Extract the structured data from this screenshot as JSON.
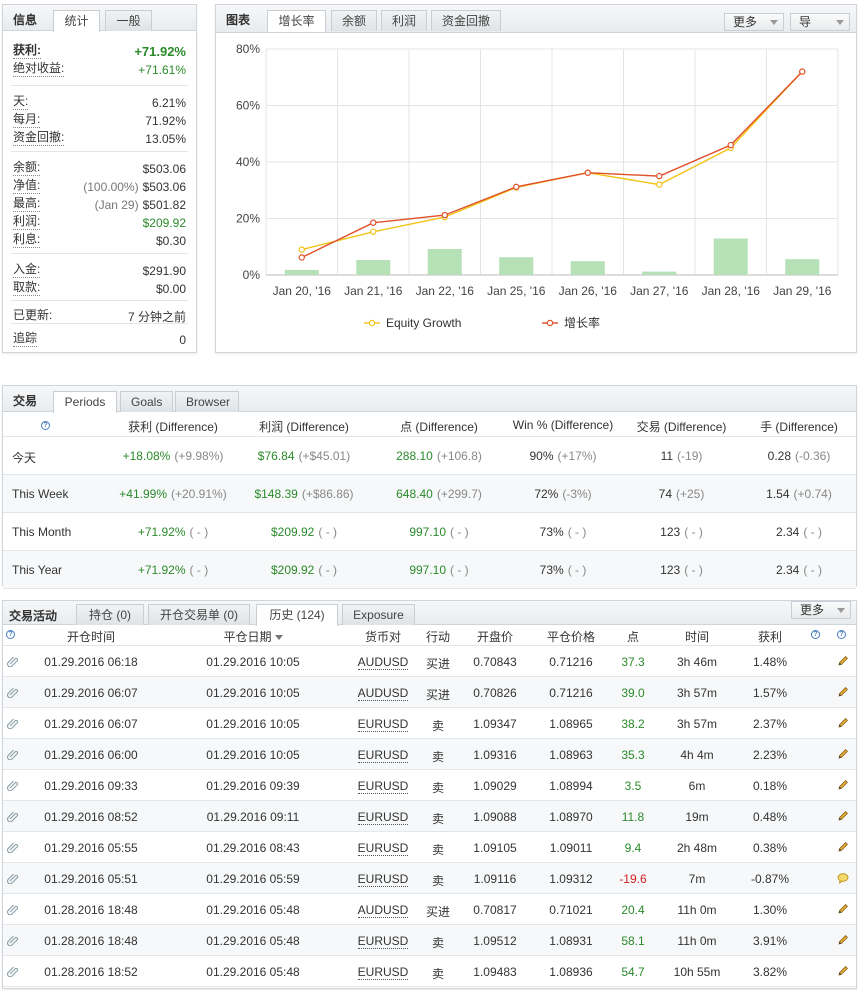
{
  "info": {
    "title": "信息",
    "tabs": [
      "统计",
      "一般"
    ],
    "rows": [
      {
        "label": "获利:",
        "value": "+71.92%",
        "bold": true,
        "color": "green"
      },
      {
        "label": "绝对收益:",
        "value": "+71.61%",
        "color": "green"
      },
      {
        "label": "天:",
        "value": "6.21%"
      },
      {
        "label": "每月:",
        "value": "71.92%"
      },
      {
        "label": "资金回撤:",
        "value": "13.05%"
      },
      {
        "label": "余额:",
        "value": "$503.06"
      },
      {
        "label": "净值:",
        "prefix": "(100.00%)",
        "value": "$503.06"
      },
      {
        "label": "最高:",
        "prefix": "(Jan 29)",
        "value": "$501.82"
      },
      {
        "label": "利润:",
        "value": "$209.92",
        "color": "green"
      },
      {
        "label": "利息:",
        "value": "$0.30"
      },
      {
        "label": "入金:",
        "value": "$291.90"
      },
      {
        "label": "取款:",
        "value": "$0.00"
      },
      {
        "label": "已更新:",
        "value": "7 分钟之前"
      },
      {
        "label": "追踪",
        "value": "0"
      }
    ]
  },
  "chart": {
    "title": "图表",
    "tabs": [
      "增长率",
      "余额",
      "利润",
      "资金回撤"
    ],
    "more_label": "更多",
    "export_label": "导"
  },
  "chart_data": {
    "type": "line",
    "categories": [
      "Jan 20, '16",
      "Jan 21, '16",
      "Jan 22, '16",
      "Jan 25, '16",
      "Jan 26, '16",
      "Jan 27, '16",
      "Jan 28, '16",
      "Jan 29, '16"
    ],
    "series": [
      {
        "name": "Equity Growth",
        "type": "line",
        "color": "#f2c318",
        "values": [
          9.0,
          15.3,
          20.5,
          31.0,
          36.2,
          32.0,
          45.0,
          72.0
        ]
      },
      {
        "name": "增长率",
        "type": "line",
        "color": "#e0502a",
        "values": [
          6.2,
          18.5,
          21.2,
          31.2,
          36.2,
          35.0,
          46.0,
          72.0
        ]
      },
      {
        "type": "bar",
        "color": "#b6e0b6",
        "values": [
          1.8,
          5.3,
          9.2,
          6.3,
          4.9,
          1.2,
          12.9,
          5.6
        ]
      }
    ],
    "y_ticks": [
      "0%",
      "20%",
      "40%",
      "60%",
      "80%"
    ],
    "ylim": [
      0,
      80
    ],
    "grid": true,
    "legend_position": "bottom"
  },
  "trading": {
    "title": "交易",
    "tabs": [
      "Periods",
      "Goals",
      "Browser"
    ],
    "help": "?",
    "headers": [
      "获利 (Difference)",
      "利润 (Difference)",
      "点 (Difference)",
      "Win % (Difference)",
      "交易 (Difference)",
      "手 (Difference)"
    ],
    "rows": [
      {
        "period": "今天",
        "cells": [
          {
            "v": "+18.08%",
            "d": "(+9.98%)",
            "c": "green"
          },
          {
            "v": "$76.84",
            "d": "(+$45.01)",
            "c": "green"
          },
          {
            "v": "288.10",
            "d": "(+106.8)",
            "c": "green"
          },
          {
            "v": "90%",
            "d": "(+17%)"
          },
          {
            "v": "11",
            "d": "(-19)"
          },
          {
            "v": "0.28",
            "d": "(-0.36)"
          }
        ]
      },
      {
        "period": "This Week",
        "cells": [
          {
            "v": "+41.99%",
            "d": "(+20.91%)",
            "c": "green"
          },
          {
            "v": "$148.39",
            "d": "(+$86.86)",
            "c": "green"
          },
          {
            "v": "648.40",
            "d": "(+299.7)",
            "c": "green"
          },
          {
            "v": "72%",
            "d": "(-3%)"
          },
          {
            "v": "74",
            "d": "(+25)"
          },
          {
            "v": "1.54",
            "d": "(+0.74)"
          }
        ]
      },
      {
        "period": "This Month",
        "cells": [
          {
            "v": "+71.92%",
            "d": "( - )",
            "c": "green"
          },
          {
            "v": "$209.92",
            "d": "( - )",
            "c": "green"
          },
          {
            "v": "997.10",
            "d": "( - )",
            "c": "green"
          },
          {
            "v": "73%",
            "d": "( - )"
          },
          {
            "v": "123",
            "d": "( - )"
          },
          {
            "v": "2.34",
            "d": "( - )"
          }
        ]
      },
      {
        "period": "This Year",
        "cells": [
          {
            "v": "+71.92%",
            "d": "( - )",
            "c": "green"
          },
          {
            "v": "$209.92",
            "d": "( - )",
            "c": "green"
          },
          {
            "v": "997.10",
            "d": "( - )",
            "c": "green"
          },
          {
            "v": "73%",
            "d": "( - )"
          },
          {
            "v": "123",
            "d": "( - )"
          },
          {
            "v": "2.34",
            "d": "( - )"
          }
        ]
      }
    ]
  },
  "activity": {
    "title": "交易活动",
    "tabs": [
      "持仓 (0)",
      "开仓交易单 (0)",
      "历史 (124)",
      "Exposure"
    ],
    "more_label": "更多",
    "headers": [
      "开仓时间",
      "平仓日期",
      "货币对",
      "行动",
      "开盘价",
      "平仓价格",
      "点",
      "时间",
      "获利"
    ],
    "rows": [
      {
        "open": "01.29.2016 06:18",
        "close": "01.29.2016 10:05",
        "pair": "AUDUSD",
        "action": "买进",
        "open_price": "0.70843",
        "close_price": "0.71216",
        "pips": "37.3",
        "dur": "3h 46m",
        "profit": "1.48%",
        "icon": "pencil"
      },
      {
        "open": "01.29.2016 06:07",
        "close": "01.29.2016 10:05",
        "pair": "AUDUSD",
        "action": "买进",
        "open_price": "0.70826",
        "close_price": "0.71216",
        "pips": "39.0",
        "dur": "3h 57m",
        "profit": "1.57%",
        "icon": "pencil"
      },
      {
        "open": "01.29.2016 06:07",
        "close": "01.29.2016 10:05",
        "pair": "EURUSD",
        "action": "卖",
        "open_price": "1.09347",
        "close_price": "1.08965",
        "pips": "38.2",
        "dur": "3h 57m",
        "profit": "2.37%",
        "icon": "pencil"
      },
      {
        "open": "01.29.2016 06:00",
        "close": "01.29.2016 10:05",
        "pair": "EURUSD",
        "action": "卖",
        "open_price": "1.09316",
        "close_price": "1.08963",
        "pips": "35.3",
        "dur": "4h 4m",
        "profit": "2.23%",
        "icon": "pencil"
      },
      {
        "open": "01.29.2016 09:33",
        "close": "01.29.2016 09:39",
        "pair": "EURUSD",
        "action": "卖",
        "open_price": "1.09029",
        "close_price": "1.08994",
        "pips": "3.5",
        "dur": "6m",
        "profit": "0.18%",
        "icon": "pencil"
      },
      {
        "open": "01.29.2016 08:52",
        "close": "01.29.2016 09:11",
        "pair": "EURUSD",
        "action": "卖",
        "open_price": "1.09088",
        "close_price": "1.08970",
        "pips": "11.8",
        "dur": "19m",
        "profit": "0.48%",
        "icon": "pencil"
      },
      {
        "open": "01.29.2016 05:55",
        "close": "01.29.2016 08:43",
        "pair": "EURUSD",
        "action": "卖",
        "open_price": "1.09105",
        "close_price": "1.09011",
        "pips": "9.4",
        "dur": "2h 48m",
        "profit": "0.38%",
        "icon": "pencil"
      },
      {
        "open": "01.29.2016 05:51",
        "close": "01.29.2016 05:59",
        "pair": "EURUSD",
        "action": "卖",
        "open_price": "1.09116",
        "close_price": "1.09312",
        "pips": "-19.6",
        "dur": "7m",
        "profit": "-0.87%",
        "icon": "comment",
        "neg": true
      },
      {
        "open": "01.28.2016 18:48",
        "close": "01.29.2016 05:48",
        "pair": "AUDUSD",
        "action": "买进",
        "open_price": "0.70817",
        "close_price": "0.71021",
        "pips": "20.4",
        "dur": "11h 0m",
        "profit": "1.30%",
        "icon": "pencil"
      },
      {
        "open": "01.28.2016 18:48",
        "close": "01.29.2016 05:48",
        "pair": "EURUSD",
        "action": "卖",
        "open_price": "1.09512",
        "close_price": "1.08931",
        "pips": "58.1",
        "dur": "11h 0m",
        "profit": "3.91%",
        "icon": "pencil"
      },
      {
        "open": "01.28.2016 18:52",
        "close": "01.29.2016 05:48",
        "pair": "EURUSD",
        "action": "卖",
        "open_price": "1.09483",
        "close_price": "1.08936",
        "pips": "54.7",
        "dur": "10h 55m",
        "profit": "3.82%",
        "icon": "pencil"
      }
    ]
  }
}
